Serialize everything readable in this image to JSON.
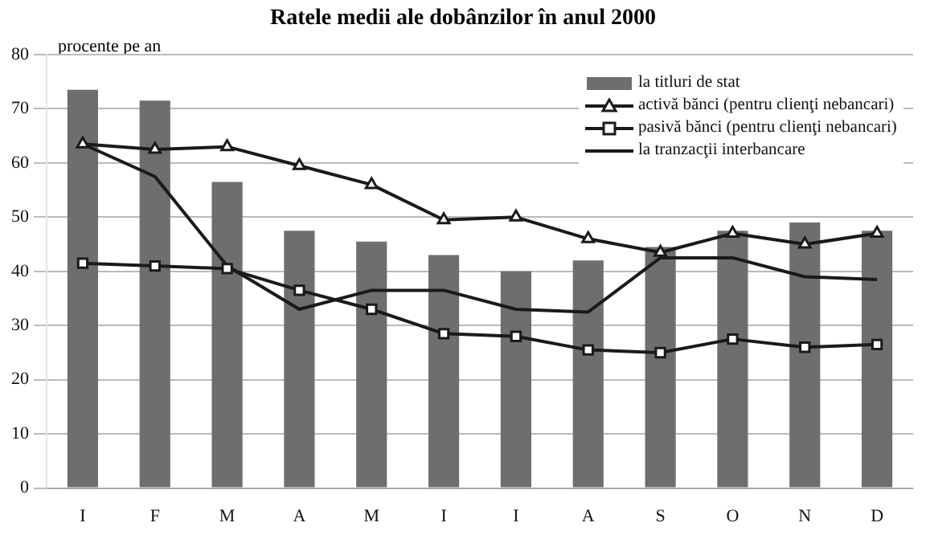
{
  "chart_data": {
    "type": "bar",
    "title": "Ratele medii ale dobânzilor în anul 2000",
    "ylabel": "procente pe an",
    "categories": [
      "I",
      "F",
      "M",
      "A",
      "M",
      "I",
      "I",
      "A",
      "S",
      "O",
      "N",
      "D"
    ],
    "ylim": [
      0,
      80
    ],
    "yticks": [
      0,
      10,
      20,
      30,
      40,
      50,
      60,
      70,
      80
    ],
    "grid": "y",
    "legend": "top right",
    "series": [
      {
        "name": "la titluri de stat",
        "color": "#6e6e6e",
        "values": [
          73.5,
          71.5,
          56.5,
          47.5,
          45.5,
          43,
          40,
          42,
          44.5,
          47.5,
          49,
          47.5
        ]
      },
      {
        "name": "activă bănci (pentru clienţi nebancari)",
        "type": "line",
        "marker": "triangle",
        "color": "#1a1a1a",
        "values": [
          63.5,
          62.5,
          63,
          59.5,
          56,
          49.5,
          50,
          46,
          43.5,
          47,
          45,
          47
        ]
      },
      {
        "name": "pasivă bănci (pentru clienţi nebancari)",
        "type": "line",
        "marker": "square",
        "color": "#1a1a1a",
        "values": [
          41.5,
          41,
          40.5,
          36.5,
          33,
          28.5,
          28,
          25.5,
          25,
          27.5,
          26,
          26.5
        ]
      },
      {
        "name": "la tranzacţii interbancare",
        "type": "line",
        "marker": "none",
        "color": "#1a1a1a",
        "values": [
          63.5,
          57.5,
          41,
          33,
          36.5,
          36.5,
          33,
          32.5,
          42.5,
          42.5,
          39,
          38.5
        ]
      }
    ]
  }
}
